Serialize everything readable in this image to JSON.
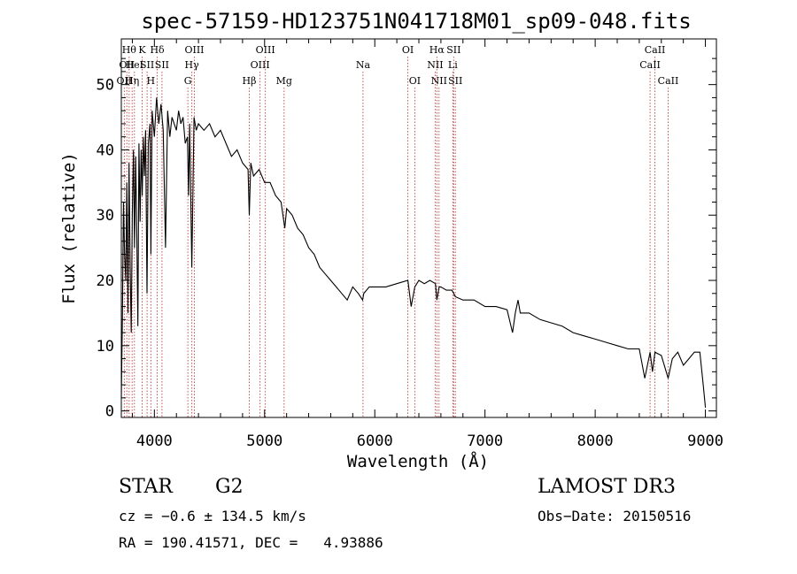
{
  "chart_data": {
    "type": "line",
    "title": "spec-57159-HD123751N041718M01_sp09-048.fits",
    "xlabel": "Wavelength (Å)",
    "ylabel": "Flux (relative)",
    "xlim": [
      3700,
      9100
    ],
    "ylim": [
      -1,
      57
    ],
    "xticks": [
      4000,
      5000,
      6000,
      7000,
      8000,
      9000
    ],
    "yticks": [
      0,
      10,
      20,
      30,
      40,
      50
    ],
    "grid": false,
    "series": [
      {
        "name": "spectrum",
        "x": [
          3700,
          3710,
          3720,
          3730,
          3740,
          3750,
          3760,
          3770,
          3780,
          3790,
          3800,
          3810,
          3820,
          3830,
          3840,
          3850,
          3860,
          3870,
          3880,
          3890,
          3900,
          3910,
          3920,
          3933,
          3945,
          3960,
          3968,
          3980,
          4000,
          4020,
          4040,
          4060,
          4080,
          4101,
          4120,
          4140,
          4160,
          4180,
          4200,
          4220,
          4240,
          4260,
          4280,
          4300,
          4310,
          4320,
          4340,
          4360,
          4380,
          4400,
          4450,
          4500,
          4550,
          4600,
          4650,
          4700,
          4750,
          4800,
          4850,
          4861,
          4875,
          4900,
          4950,
          5000,
          5050,
          5100,
          5150,
          5183,
          5200,
          5250,
          5300,
          5350,
          5400,
          5450,
          5500,
          5550,
          5600,
          5650,
          5700,
          5750,
          5800,
          5850,
          5890,
          5900,
          5950,
          6000,
          6100,
          6200,
          6300,
          6330,
          6363,
          6400,
          6450,
          6500,
          6550,
          6563,
          6584,
          6600,
          6650,
          6700,
          6717,
          6731,
          6800,
          6900,
          7000,
          7100,
          7200,
          7250,
          7275,
          7300,
          7320,
          7400,
          7500,
          7600,
          7700,
          7800,
          7900,
          8000,
          8100,
          8200,
          8300,
          8400,
          8450,
          8498,
          8520,
          8542,
          8600,
          8662,
          8700,
          8750,
          8800,
          8850,
          8900,
          8950,
          8980,
          9000
        ],
        "y": [
          2,
          14,
          32,
          24,
          20,
          35,
          15,
          38,
          22,
          12,
          30,
          40,
          25,
          39,
          28,
          13,
          41,
          29,
          40,
          33,
          42,
          36,
          43,
          18,
          41,
          44,
          24,
          46,
          42,
          48,
          44,
          47,
          43,
          25,
          46,
          42,
          45,
          44,
          43,
          46,
          44,
          45,
          41,
          42,
          33,
          44,
          22,
          45,
          43,
          44,
          43,
          44,
          42,
          43,
          41,
          39,
          40,
          38,
          37,
          30,
          38,
          36,
          37,
          35,
          35,
          33,
          32,
          28,
          31,
          30,
          28,
          27,
          25,
          24,
          22,
          21,
          20,
          19,
          18,
          17,
          19,
          18,
          17,
          18,
          19,
          19,
          19,
          19.5,
          20,
          16,
          19,
          20,
          19.5,
          20,
          19.5,
          17,
          19,
          19,
          18.5,
          18.5,
          18,
          17.5,
          17,
          17,
          16,
          16,
          15.5,
          12,
          15,
          17,
          15,
          15,
          14,
          13.5,
          13,
          12,
          11.5,
          11,
          10.5,
          10,
          9.5,
          9.5,
          5,
          9,
          6,
          9,
          8.5,
          5,
          8,
          9,
          7,
          8,
          9,
          9,
          4,
          0.5
        ],
        "color": "#000000"
      }
    ],
    "line_labels": [
      {
        "x": 3727,
        "label": "OII",
        "row": 2
      },
      {
        "x": 3750,
        "label": "OII",
        "row": 1
      },
      {
        "x": 3771,
        "label": "Hθ",
        "row": 0
      },
      {
        "x": 3798,
        "label": "Hη",
        "row": 2
      },
      {
        "x": 3819,
        "label": "HeI",
        "row": 1
      },
      {
        "x": 3889,
        "label": "K",
        "row": 0
      },
      {
        "x": 3934,
        "label": "SII",
        "row": 1
      },
      {
        "x": 3968,
        "label": "H",
        "row": 2
      },
      {
        "x": 4026,
        "label": "Hδ",
        "row": 0
      },
      {
        "x": 4069,
        "label": "SII",
        "row": 1
      },
      {
        "x": 4304,
        "label": "G",
        "row": 2
      },
      {
        "x": 4340,
        "label": "Hγ",
        "row": 1
      },
      {
        "x": 4363,
        "label": "OIII",
        "row": 0
      },
      {
        "x": 4861,
        "label": "Hβ",
        "row": 2
      },
      {
        "x": 4959,
        "label": "OIII",
        "row": 1
      },
      {
        "x": 5007,
        "label": "OIII",
        "row": 0
      },
      {
        "x": 5177,
        "label": "Mg",
        "row": 2
      },
      {
        "x": 5893,
        "label": "Na",
        "row": 1
      },
      {
        "x": 6300,
        "label": "OI",
        "row": 0
      },
      {
        "x": 6363,
        "label": "OI",
        "row": 2
      },
      {
        "x": 6548,
        "label": "NII",
        "row": 1
      },
      {
        "x": 6563,
        "label": "Hα",
        "row": 0
      },
      {
        "x": 6583,
        "label": "NII",
        "row": 2
      },
      {
        "x": 6708,
        "label": "Li",
        "row": 1
      },
      {
        "x": 6716,
        "label": "SII",
        "row": 0
      },
      {
        "x": 6731,
        "label": "SII",
        "row": 2
      },
      {
        "x": 8498,
        "label": "CaII",
        "row": 1
      },
      {
        "x": 8542,
        "label": "CaII",
        "row": 0
      },
      {
        "x": 8662,
        "label": "CaII",
        "row": 2
      }
    ]
  },
  "info": {
    "object_class": "STAR",
    "subclass": "G2",
    "survey": "LAMOST DR3",
    "redshift_text": "cz = −0.6 ± 134.5 km/s",
    "obs_date_text": "Obs−Date: 20150516",
    "coords_text": "RA = 190.41571, DEC =   4.93886"
  },
  "colors": {
    "spectrum": "#000000",
    "line_markers": "#c04040",
    "axes": "#000000"
  }
}
